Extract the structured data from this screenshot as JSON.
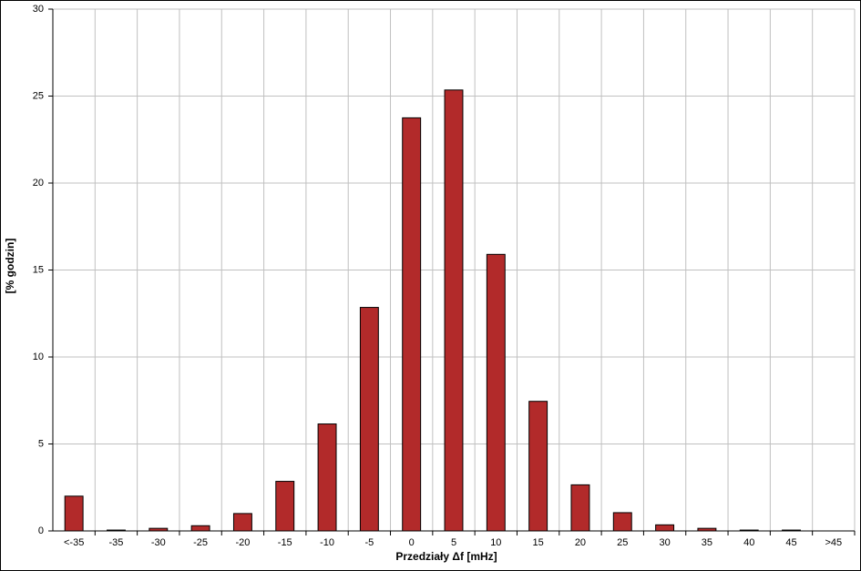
{
  "chart_data": {
    "type": "bar",
    "categories": [
      "<-35",
      "-35",
      "-30",
      "-25",
      "-20",
      "-15",
      "-10",
      "-5",
      "0",
      "5",
      "10",
      "15",
      "20",
      "25",
      "30",
      "35",
      "40",
      "45",
      ">45"
    ],
    "values": [
      2.0,
      0.05,
      0.15,
      0.3,
      1.0,
      2.85,
      6.15,
      12.85,
      23.75,
      25.35,
      15.9,
      7.45,
      2.65,
      1.05,
      0.35,
      0.15,
      0.05,
      0.05,
      0
    ],
    "color": "#b22a2a",
    "x_label": "Przedziały Δf [mHz]",
    "y_label": "[% godzin]",
    "ylim": [
      0,
      30
    ],
    "yticks": [
      0,
      5,
      10,
      15,
      20,
      25,
      30
    ],
    "grid": true
  }
}
